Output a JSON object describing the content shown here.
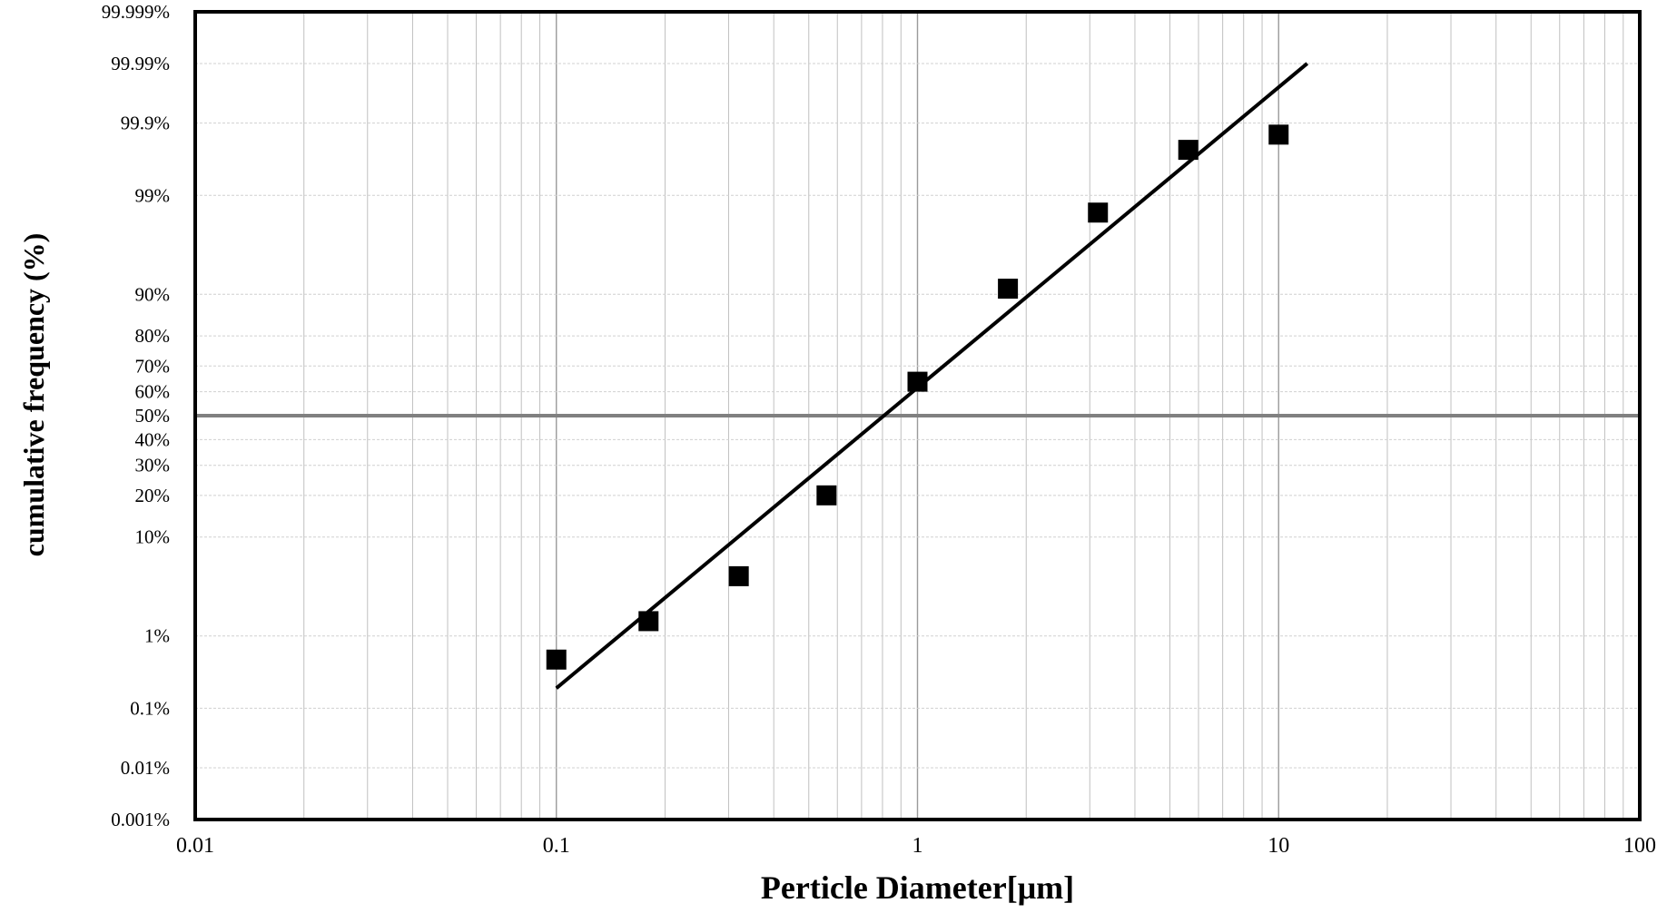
{
  "chart_data": {
    "type": "scatter",
    "xlabel": "Perticle Diameter[μm]",
    "ylabel": "cumulative frequency (%)",
    "x_scale": "log",
    "y_scale": "probability",
    "xlim": [
      0.01,
      100
    ],
    "ylim": [
      0.001,
      99.999
    ],
    "grid": true,
    "legend": "none",
    "x_tick_labels": [
      "0.01",
      "0.1",
      "1",
      "10",
      "100"
    ],
    "x_ticks": [
      0.01,
      0.1,
      1,
      10,
      100
    ],
    "y_tick_labels": [
      "0.001%",
      "0.01%",
      "0.1%",
      "1%",
      "10%",
      "20%",
      "30%",
      "40%",
      "50%",
      "60%",
      "70%",
      "80%",
      "90%",
      "99%",
      "99.9%",
      "99.99%",
      "99.999%"
    ],
    "y_ticks": [
      0.001,
      0.01,
      0.1,
      1,
      10,
      20,
      30,
      40,
      50,
      60,
      70,
      80,
      90,
      99,
      99.9,
      99.99,
      99.999
    ],
    "reference_line": {
      "y": 50,
      "color": "#808080"
    },
    "series": [
      {
        "marker": "square",
        "color": "#000000",
        "points": [
          {
            "x": 0.1,
            "y": 0.5
          },
          {
            "x": 0.18,
            "y": 1.5
          },
          {
            "x": 0.32,
            "y": 4.5
          },
          {
            "x": 0.56,
            "y": 20
          },
          {
            "x": 1.0,
            "y": 64
          },
          {
            "x": 1.78,
            "y": 91
          },
          {
            "x": 3.16,
            "y": 98.4
          },
          {
            "x": 5.62,
            "y": 99.75
          },
          {
            "x": 10.0,
            "y": 99.85
          }
        ]
      }
    ],
    "fit_line": {
      "color": "#000000",
      "points": [
        {
          "x": 0.1,
          "y": 0.2
        },
        {
          "x": 12,
          "y": 99.99
        }
      ]
    }
  }
}
